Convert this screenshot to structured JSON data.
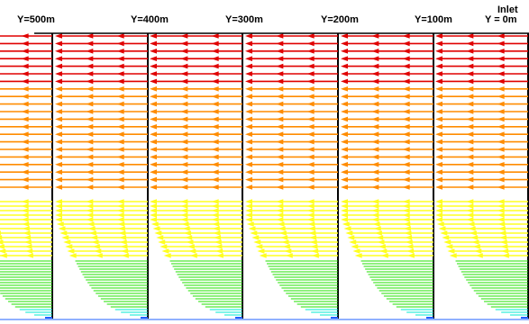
{
  "figure": {
    "profiles": [
      {
        "label": "Y=500m"
      },
      {
        "label": "Y=400m"
      },
      {
        "label": "Y=300m"
      },
      {
        "label": "Y=200m"
      },
      {
        "label": "Y=100m"
      },
      {
        "label": "Y = 0m",
        "label_above": "Inlet"
      }
    ],
    "flow_direction": "-x",
    "colors": {
      "top": "#e00000",
      "upper": "#ff8c00",
      "middle": "#ffff20",
      "lower": "#22e000",
      "bottom": "#00e8d0",
      "wall": "#000000"
    }
  }
}
